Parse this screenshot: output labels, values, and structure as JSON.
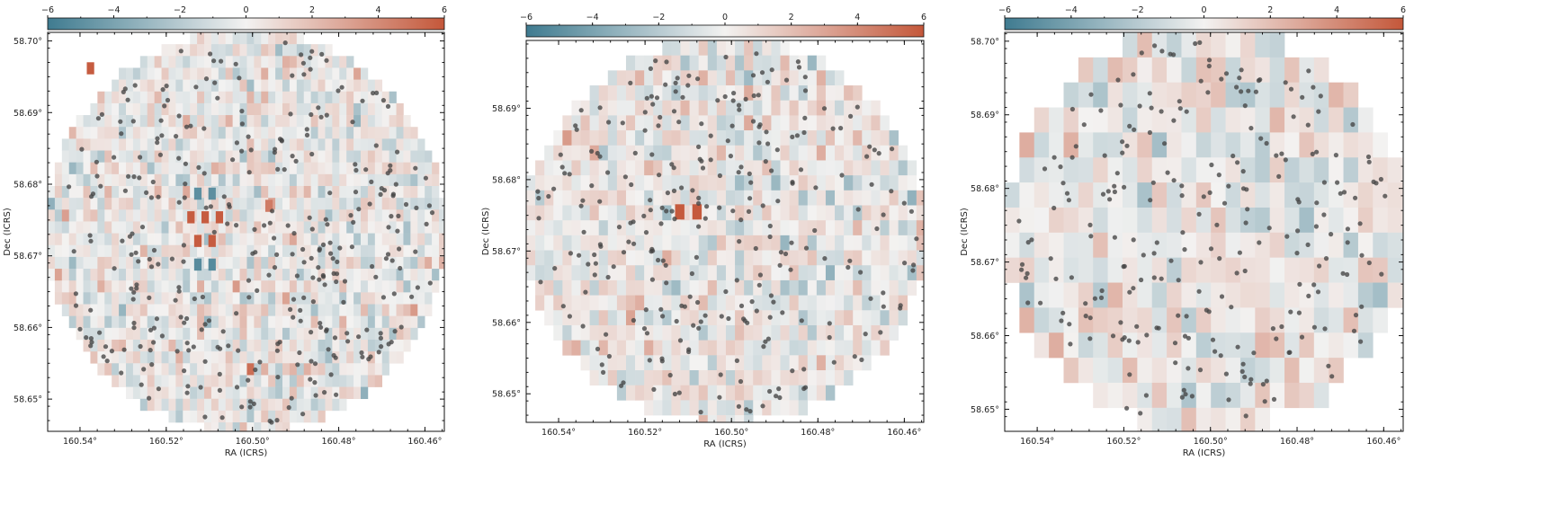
{
  "colors": {
    "negative": "#3f7b90",
    "neutral": "#f3f2f1",
    "positive": "#c4573a",
    "point": "#444444",
    "frame": "#111111"
  },
  "chart_data": [
    {
      "type": "heatmap",
      "title": "",
      "colorbar": {
        "range": [
          -6,
          6
        ],
        "ticks": [
          "−6",
          "−4",
          "−2",
          "0",
          "2",
          "4",
          "6"
        ],
        "placement": "top",
        "colormap": "diverging blue–white–red"
      },
      "xlabel": "RA (ICRS)",
      "ylabel": "Dec (ICRS)",
      "x_ticks": [
        "160.54°",
        "160.52°",
        "160.50°",
        "160.48°",
        "160.46°"
      ],
      "y_ticks": [
        "58.65°",
        "58.66°",
        "58.67°",
        "58.68°",
        "58.69°",
        "58.70°"
      ],
      "xlim": [
        160.5475,
        160.4555
      ],
      "ylim": [
        58.6455,
        58.7012
      ],
      "grid": {
        "nx": 33,
        "ny": 33,
        "pixel_size_deg": 0.00165
      },
      "highlights": [
        {
          "ra": 160.5376,
          "dec": 58.6962,
          "value": 5.8
        },
        {
          "ra": 160.5127,
          "dec": 58.6787,
          "value": -5.0
        },
        {
          "ra": 160.5094,
          "dec": 58.6787,
          "value": -5.0
        },
        {
          "ra": 160.5143,
          "dec": 58.6754,
          "value": 5.8
        },
        {
          "ra": 160.511,
          "dec": 58.6754,
          "value": 5.8
        },
        {
          "ra": 160.5077,
          "dec": 58.6754,
          "value": 5.8
        },
        {
          "ra": 160.5127,
          "dec": 58.6721,
          "value": 5.8
        },
        {
          "ra": 160.5094,
          "dec": 58.6721,
          "value": 5.8
        },
        {
          "ra": 160.5127,
          "dec": 58.6688,
          "value": -5.2
        },
        {
          "ra": 160.5094,
          "dec": 58.6688,
          "value": -5.2
        },
        {
          "ra": 160.4962,
          "dec": 58.677,
          "value": 4.6
        }
      ],
      "point_count": 340
    },
    {
      "type": "heatmap",
      "title": "",
      "colorbar": {
        "range": [
          -6,
          6
        ],
        "ticks": [
          "−6",
          "−4",
          "−2",
          "0",
          "2",
          "4",
          "6"
        ],
        "placement": "top",
        "colormap": "diverging blue–white–red"
      },
      "xlabel": "RA (ICRS)",
      "ylabel": "Dec (ICRS)",
      "x_ticks": [
        "160.54°",
        "160.52°",
        "160.50°",
        "160.48°",
        "160.46°"
      ],
      "y_ticks": [
        "58.65°",
        "58.66°",
        "58.67°",
        "58.68°",
        "58.69°"
      ],
      "xlim": [
        160.5475,
        160.4555
      ],
      "ylim": [
        58.646,
        58.6995
      ],
      "grid": {
        "nx": 26,
        "ny": 25,
        "pixel_size_deg": 0.0021
      },
      "highlights": [
        {
          "ra": 160.512,
          "dec": 58.6755,
          "value": 5.9
        },
        {
          "ra": 160.508,
          "dec": 58.6755,
          "value": 5.9
        }
      ],
      "point_count": 280
    },
    {
      "type": "heatmap",
      "title": "",
      "colorbar": {
        "range": [
          -6,
          6
        ],
        "ticks": [
          "−6",
          "−4",
          "−2",
          "0",
          "2",
          "4",
          "6"
        ],
        "placement": "top",
        "colormap": "diverging blue–white–red"
      },
      "xlabel": "RA (ICRS)",
      "ylabel": "Dec (ICRS)",
      "x_ticks": [
        "160.54°",
        "160.52°",
        "160.50°",
        "160.48°",
        "160.46°"
      ],
      "y_ticks": [
        "58.65°",
        "58.66°",
        "58.67°",
        "58.68°",
        "58.69°",
        "58.70°"
      ],
      "xlim": [
        160.5475,
        160.4555
      ],
      "ylim": [
        58.647,
        58.7012
      ],
      "grid": {
        "nx": 17,
        "ny": 16,
        "pixel_size_deg": 0.0034
      },
      "highlights": [],
      "point_count": 250
    }
  ]
}
